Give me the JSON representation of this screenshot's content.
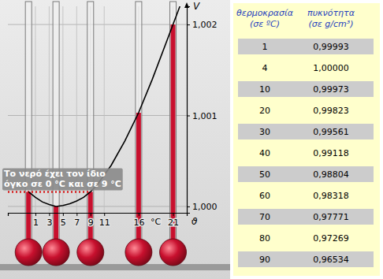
{
  "chart_data": {
    "type": "line",
    "xlabel": "ϑ",
    "ylabel": "V",
    "x": [
      0,
      1,
      2,
      3,
      4,
      5,
      6,
      7,
      8,
      9,
      10,
      12,
      14,
      16,
      18,
      20,
      21,
      22
    ],
    "values": [
      1.00016,
      1.0001,
      1.00005,
      1.00002,
      1.0,
      1.00001,
      1.00003,
      1.00006,
      1.0001,
      1.00016,
      1.00024,
      1.00045,
      1.00072,
      1.00103,
      1.0014,
      1.0018,
      1.002,
      1.0022
    ],
    "color": "#000000",
    "xlim": [
      -3,
      23
    ],
    "ylim": [
      0.99993,
      1.0022
    ],
    "xticks": [
      1,
      3,
      5,
      7,
      9,
      11,
      16,
      21
    ],
    "yticks": [
      {
        "value": 1.0,
        "label": "1,000"
      },
      {
        "value": 1.001,
        "label": "1,001"
      },
      {
        "value": 1.002,
        "label": "1,002"
      }
    ],
    "grid": true,
    "flasks": {
      "x": [
        0,
        4,
        9,
        16,
        21
      ],
      "values": [
        1.00016,
        1.0,
        1.00016,
        1.00103,
        1.002
      ],
      "color": "#c8102e"
    },
    "annotations": [
      {
        "text": "°C",
        "x": 18.5
      },
      {
        "lines": [
          "Το νερό έχει τον ίδιο",
          "όγκο σε 0 °C και σε 9 °C"
        ],
        "x": 9,
        "y": 1.00016,
        "color": "#d81e1e",
        "line_style": "dotted"
      }
    ]
  },
  "table": {
    "header": [
      "θερμοκρασία (σε ºC)",
      "πυκνότητα (σε g/cm³)"
    ],
    "rows": [
      [
        1,
        "0,99993"
      ],
      [
        4,
        "1,00000"
      ],
      [
        10,
        "0,99973"
      ],
      [
        20,
        "0,99823"
      ],
      [
        30,
        "0,99561"
      ],
      [
        40,
        "0,99118"
      ],
      [
        50,
        "0,98804"
      ],
      [
        60,
        "0,98318"
      ],
      [
        70,
        "0,97771"
      ],
      [
        80,
        "0,97269"
      ],
      [
        90,
        "0,96534"
      ]
    ]
  }
}
